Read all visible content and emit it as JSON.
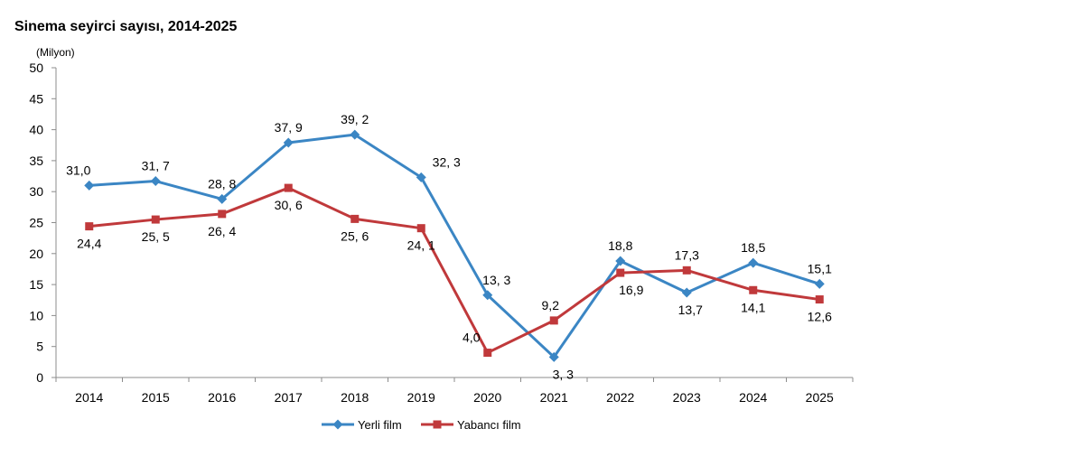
{
  "chart_data": {
    "type": "line",
    "title": "Sinema seyirci sayısı, 2014-2025",
    "ylabel": "(Milyon)",
    "xlabel": "",
    "ylim": [
      0,
      50
    ],
    "yticks": [
      0,
      5,
      10,
      15,
      20,
      25,
      30,
      35,
      40,
      45,
      50
    ],
    "categories": [
      "2014",
      "2015",
      "2016",
      "2017",
      "2018",
      "2019",
      "2020",
      "2021",
      "2022",
      "2023",
      "2024",
      "2025"
    ],
    "grid": false,
    "legend": "bottom",
    "series": [
      {
        "name": "Yerli film",
        "color": "#3b86c4",
        "marker": "diamond",
        "values": [
          31.0,
          31.7,
          28.8,
          37.9,
          39.2,
          32.3,
          13.3,
          3.3,
          18.8,
          13.7,
          18.5,
          15.1
        ],
        "labels": [
          "31,0",
          "31, 7",
          "28, 8",
          "37, 9",
          "39, 2",
          "32, 3",
          "13, 3",
          "3, 3",
          "18,8",
          "13,7",
          "18,5",
          "15,1"
        ]
      },
      {
        "name": "Yabancı film",
        "color": "#c0393b",
        "marker": "square",
        "values": [
          24.4,
          25.5,
          26.4,
          30.6,
          25.6,
          24.1,
          4.0,
          9.2,
          16.9,
          17.3,
          14.1,
          12.6
        ],
        "labels": [
          "24,4",
          "25, 5",
          "26, 4",
          "30, 6",
          "25, 6",
          "24, 1",
          "4,0",
          "9,2",
          "16,9",
          "17,3",
          "14,1",
          "12,6"
        ]
      }
    ]
  }
}
